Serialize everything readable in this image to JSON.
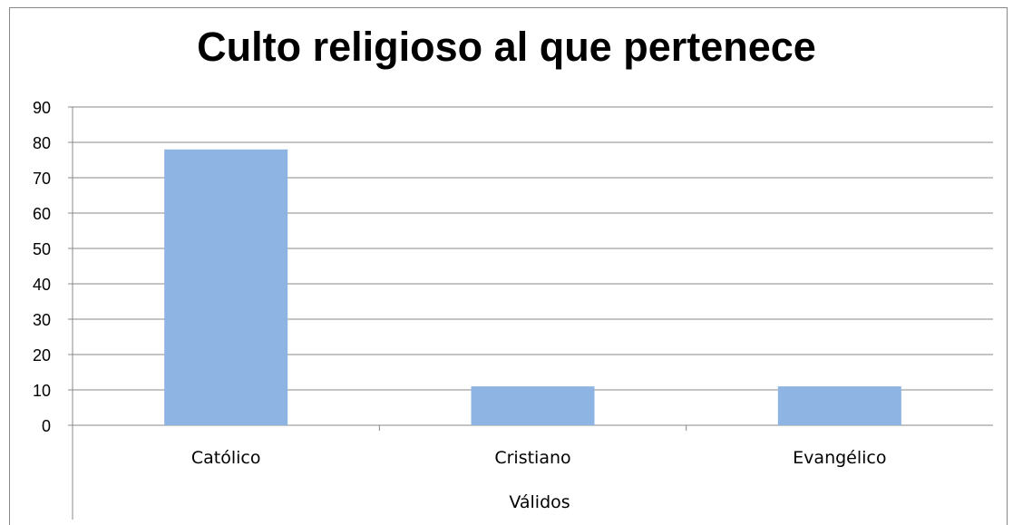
{
  "chart_data": {
    "type": "bar",
    "title": "Culto religioso al que pertenece",
    "categories": [
      "Católico",
      "Cristiano",
      "Evangélico"
    ],
    "values": [
      78,
      11,
      11
    ],
    "xlabel": "Válidos",
    "ylabel": "",
    "ylim": [
      0,
      90
    ],
    "yticks": [
      "0",
      "10",
      "20",
      "30",
      "40",
      "50",
      "60",
      "70",
      "80",
      "90"
    ],
    "bar_color": "#8EB4E3",
    "grid": true,
    "legend": "none"
  }
}
